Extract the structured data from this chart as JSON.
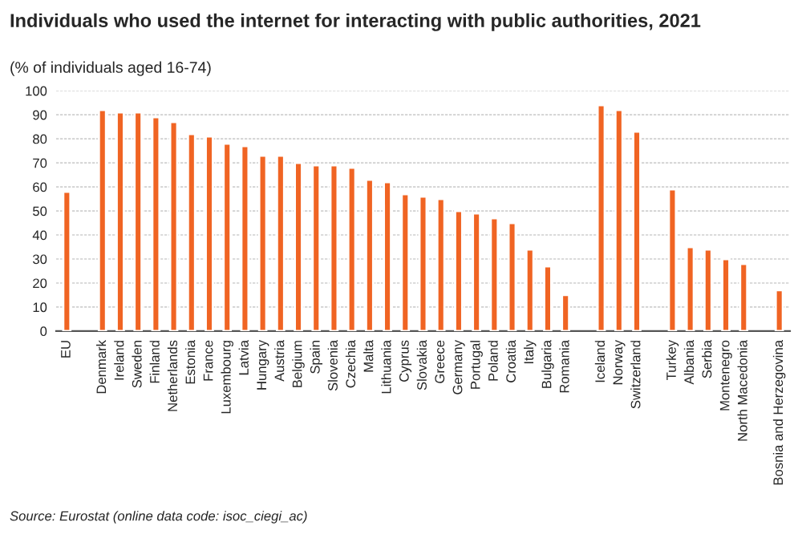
{
  "chart_data": {
    "type": "bar",
    "title": "Individuals who used the internet for interacting with public authorities, 2021",
    "subtitle": "(% of individuals aged 16-74)",
    "categories": [
      "EU",
      null,
      "Denmark",
      "Ireland",
      "Sweden",
      "Finland",
      "Netherlands",
      "Estonia",
      "France",
      "Luxembourg",
      "Latvia",
      "Hungary",
      "Austria",
      "Belgium",
      "Spain",
      "Slovenia",
      "Czechia",
      "Malta",
      "Lithuania",
      "Cyprus",
      "Slovakia",
      "Greece",
      "Germany",
      "Portugal",
      "Poland",
      "Croatia",
      "Italy",
      "Bulgaria",
      "Romania",
      null,
      "Iceland",
      "Norway",
      "Switzerland",
      null,
      "Turkey",
      "Albania",
      "Serbia",
      "Montenegro",
      "North Macedonia",
      null,
      "Bosnia and Herzegovina"
    ],
    "values": [
      58,
      null,
      92,
      91,
      91,
      89,
      87,
      82,
      81,
      78,
      77,
      73,
      73,
      70,
      69,
      69,
      68,
      63,
      62,
      57,
      56,
      55,
      50,
      49,
      47,
      45,
      34,
      27,
      15,
      null,
      94,
      92,
      83,
      null,
      59,
      35,
      34,
      30,
      28,
      null,
      17
    ],
    "color": "#f06423",
    "ylim": [
      0,
      100
    ],
    "yticks": [
      0,
      10,
      20,
      30,
      40,
      50,
      60,
      70,
      80,
      90,
      100
    ],
    "grid": "y",
    "annotations": [
      "Source: Eurostat (online data code: isoc_ciegi_ac)"
    ]
  }
}
